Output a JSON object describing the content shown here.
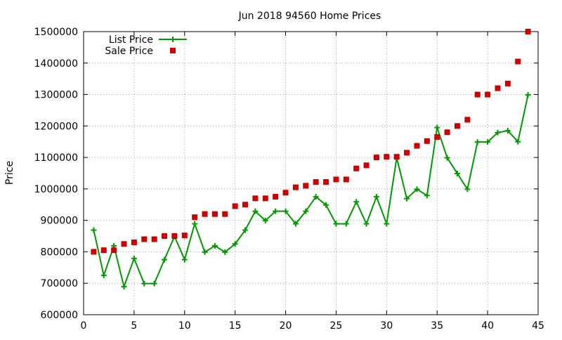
{
  "chart_data": {
    "type": "line",
    "title": "Jun 2018 94560 Home Prices",
    "xlabel": "",
    "ylabel": "Price",
    "xlim": [
      0,
      45
    ],
    "ylim": [
      600000,
      1500000
    ],
    "xticks": [
      0,
      5,
      10,
      15,
      20,
      25,
      30,
      35,
      40,
      45
    ],
    "yticks": [
      600000,
      700000,
      800000,
      900000,
      1000000,
      1100000,
      1200000,
      1300000,
      1400000,
      1500000
    ],
    "grid": true,
    "legend_position": "top-left",
    "series": [
      {
        "name": "List Price",
        "style": "line+cross",
        "color": "#009900",
        "x": [
          1,
          2,
          3,
          4,
          5,
          6,
          7,
          8,
          9,
          10,
          11,
          12,
          13,
          14,
          15,
          16,
          17,
          18,
          19,
          20,
          21,
          22,
          23,
          24,
          25,
          26,
          27,
          28,
          29,
          30,
          31,
          32,
          33,
          34,
          35,
          36,
          37,
          38,
          39,
          40,
          41,
          42,
          43,
          44
        ],
        "y": [
          869000,
          725000,
          819000,
          689000,
          779000,
          699000,
          699000,
          775000,
          849000,
          775000,
          889000,
          799000,
          819000,
          799000,
          825000,
          869000,
          929000,
          899000,
          929000,
          929000,
          889000,
          929000,
          975000,
          949000,
          889000,
          889000,
          959000,
          889000,
          975000,
          889000,
          1099000,
          969000,
          999000,
          979000,
          1195000,
          1099000,
          1049000,
          999000,
          1149000,
          1149000,
          1179000,
          1185000,
          1150000,
          1299000
        ]
      },
      {
        "name": "Sale Price",
        "style": "square",
        "color": "#cc0000",
        "x": [
          1,
          2,
          3,
          4,
          5,
          6,
          7,
          8,
          9,
          10,
          11,
          12,
          13,
          14,
          15,
          16,
          17,
          18,
          19,
          20,
          21,
          22,
          23,
          24,
          25,
          26,
          27,
          28,
          29,
          30,
          31,
          32,
          33,
          34,
          35,
          36,
          37,
          38,
          39,
          40,
          41,
          42,
          43,
          44
        ],
        "y": [
          800000,
          805000,
          805000,
          825000,
          830000,
          840000,
          840000,
          850000,
          850000,
          852000,
          910000,
          920000,
          920000,
          920000,
          945000,
          950000,
          970000,
          970000,
          975000,
          988000,
          1005000,
          1010000,
          1022000,
          1022000,
          1030000,
          1030000,
          1065000,
          1075000,
          1100000,
          1102000,
          1102000,
          1115000,
          1137000,
          1152000,
          1165000,
          1180000,
          1200000,
          1220000,
          1300000,
          1300000,
          1320000,
          1335000,
          1405000,
          1500000
        ]
      }
    ]
  }
}
